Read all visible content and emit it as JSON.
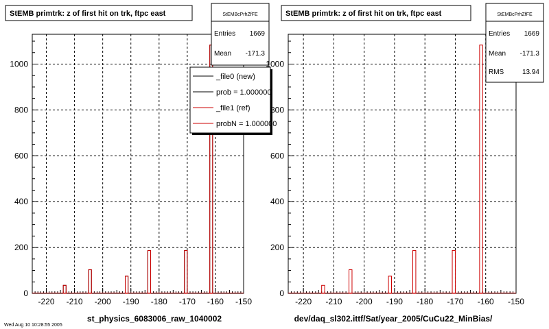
{
  "chart_data": [
    {
      "type": "bar",
      "title": "StEMB primtrk: z of first hit on trk, ftpc east",
      "xlabel": "st_physics_6083006_raw_1040002",
      "ylabel": "",
      "xlim": [
        -225,
        -150
      ],
      "ylim": [
        0,
        1130
      ],
      "xticks": [
        -220,
        -210,
        -200,
        -190,
        -180,
        -170,
        -160,
        -150
      ],
      "yticks": [
        0,
        200,
        400,
        600,
        800,
        1000
      ],
      "grid": true,
      "bins": [
        -214,
        -205,
        -192,
        -184,
        -171,
        -162
      ],
      "bin_width": 1,
      "series": [
        {
          "name": "_file0 (new)",
          "color": "#000000",
          "values": [
            35,
            103,
            75,
            187,
            187,
            1083
          ]
        },
        {
          "name": "_file1 (ref)",
          "color": "#cc0000",
          "values": [
            35,
            103,
            75,
            187,
            187,
            1083
          ]
        }
      ],
      "stats": {
        "name": "StEMBcPrhZfFE",
        "entries_label": "Entries",
        "entries": "1669",
        "mean_label": "Mean",
        "mean": "-171.3"
      },
      "legend": {
        "placement": "top-right",
        "items": [
          {
            "label": "_file0 (new)",
            "color": "#000000"
          },
          {
            "label": "prob = 1.000000",
            "color": "#000000"
          },
          {
            "label": "_file1 (ref)",
            "color": "#cc0000"
          },
          {
            "label": "probN = 1.000000",
            "color": "#cc0000"
          }
        ]
      }
    },
    {
      "type": "bar",
      "title": "StEMB primtrk: z of first hit on trk, ftpc east",
      "xlabel": "dev/daq_sl302.ittf/Sat/year_2005/CuCu22_MinBias/",
      "ylabel": "",
      "xlim": [
        -225,
        -150
      ],
      "ylim": [
        0,
        1130
      ],
      "xticks": [
        -220,
        -210,
        -200,
        -190,
        -180,
        -170,
        -160,
        -150
      ],
      "yticks": [
        0,
        200,
        400,
        600,
        800,
        1000
      ],
      "grid": true,
      "bins": [
        -214,
        -205,
        -192,
        -184,
        -171,
        -162
      ],
      "bin_width": 1,
      "series": [
        {
          "name": "",
          "color": "#cc0000",
          "values": [
            35,
            103,
            75,
            187,
            187,
            1083
          ]
        }
      ],
      "stats": {
        "name": "StEMBcPrhZfFE",
        "entries_label": "Entries",
        "entries": "1669",
        "mean_label": "Mean",
        "mean": "-171.3",
        "rms_label": "RMS",
        "rms": "13.94"
      }
    }
  ],
  "footer_text": "Wed Aug 10 10:28:55 2005"
}
